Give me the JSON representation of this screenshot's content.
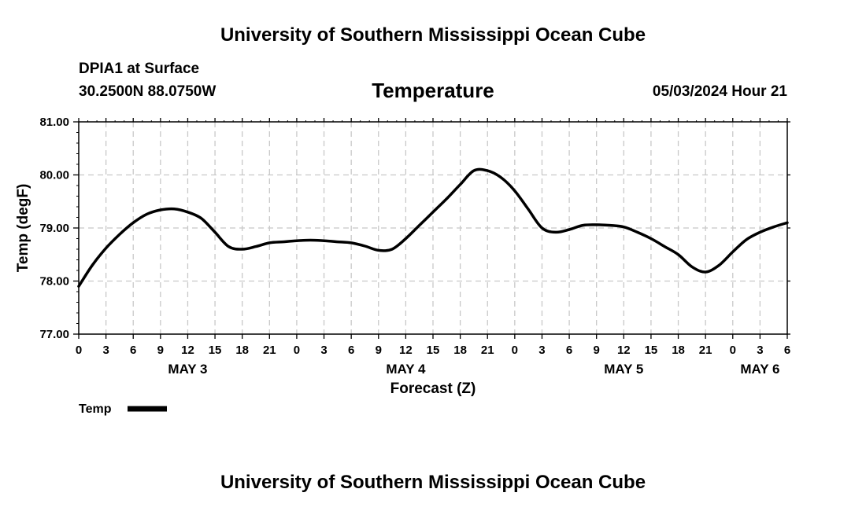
{
  "title": "University of Southern Mississippi Ocean Cube",
  "footer_title": "University of Southern Mississippi Ocean Cube",
  "header": {
    "station": "DPIA1 at Surface",
    "latlon": "30.2500N  88.0750W",
    "chart_name": "Temperature",
    "date": "05/03/2024 Hour 21"
  },
  "colors": {
    "line": "#000000",
    "grid": "#c8c8c8",
    "background": "#ffffff"
  },
  "chart_data": {
    "type": "line",
    "title": "Temperature",
    "xlabel": "Forecast (Z)",
    "ylabel": "Temp (degF)",
    "xlim": [
      0,
      78
    ],
    "ylim": [
      77,
      81
    ],
    "grid": true,
    "legend_position": "bottom-left",
    "y_ticks": [
      77,
      78,
      79,
      80,
      81
    ],
    "y_tick_labels": [
      "77.00",
      "78.00",
      "79.00",
      "80.00",
      "81.00"
    ],
    "x_ticks": [
      0,
      3,
      6,
      9,
      12,
      15,
      18,
      21,
      24,
      27,
      30,
      33,
      36,
      39,
      42,
      45,
      48,
      51,
      54,
      57,
      60,
      63,
      66,
      69,
      72,
      75,
      78
    ],
    "x_tick_labels": [
      "0",
      "3",
      "6",
      "9",
      "12",
      "15",
      "18",
      "21",
      "0",
      "3",
      "6",
      "9",
      "12",
      "15",
      "18",
      "21",
      "0",
      "3",
      "6",
      "9",
      "12",
      "15",
      "18",
      "21",
      "0",
      "3",
      "6"
    ],
    "day_labels": [
      {
        "x": 12,
        "label": "MAY 3"
      },
      {
        "x": 36,
        "label": "MAY 4"
      },
      {
        "x": 60,
        "label": "MAY 5"
      },
      {
        "x": 75,
        "label": "MAY 6"
      }
    ],
    "series": [
      {
        "name": "Temp",
        "x": [
          0,
          1.5,
          3,
          4.5,
          6,
          7.5,
          9,
          10.5,
          12,
          13.5,
          15,
          16.5,
          18,
          19.5,
          21,
          22.5,
          24,
          25.5,
          27,
          28.5,
          30,
          31.5,
          33,
          34.5,
          36,
          37.5,
          39,
          40.5,
          42,
          43.5,
          45,
          46.5,
          48,
          49.5,
          51,
          52.5,
          54,
          55.5,
          57,
          58.5,
          60,
          61.5,
          63,
          64.5,
          66,
          67.5,
          69,
          70.5,
          72,
          73.5,
          75,
          76.5,
          78
        ],
        "values": [
          77.9,
          78.3,
          78.62,
          78.88,
          79.1,
          79.26,
          79.34,
          79.36,
          79.3,
          79.18,
          78.92,
          78.65,
          78.6,
          78.65,
          78.72,
          78.74,
          78.76,
          78.77,
          78.76,
          78.74,
          78.72,
          78.66,
          78.58,
          78.6,
          78.8,
          79.05,
          79.3,
          79.55,
          79.82,
          80.08,
          80.08,
          79.95,
          79.7,
          79.35,
          79.0,
          78.92,
          78.97,
          79.05,
          79.06,
          79.05,
          79.02,
          78.92,
          78.8,
          78.65,
          78.5,
          78.27,
          78.17,
          78.3,
          78.55,
          78.78,
          78.92,
          79.02,
          79.1
        ]
      }
    ]
  }
}
